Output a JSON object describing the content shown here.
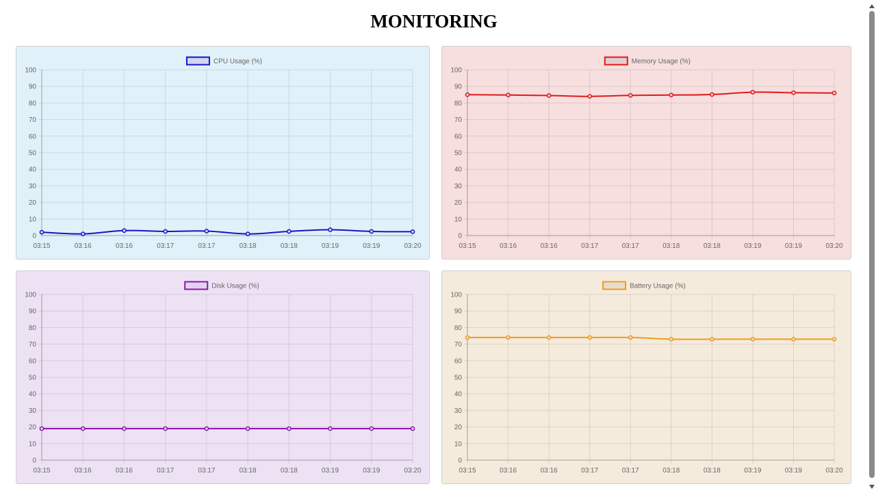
{
  "page": {
    "title": "MONITORING"
  },
  "chart_data": [
    {
      "id": "cpu",
      "type": "line",
      "title": "",
      "categories": [
        "03:15",
        "03:16",
        "03:16",
        "03:17",
        "03:17",
        "03:18",
        "03:18",
        "03:19",
        "03:19",
        "03:20"
      ],
      "series": [
        {
          "name": "CPU Usage (%)",
          "values": [
            2,
            1,
            3,
            2.5,
            2.7,
            1,
            2.5,
            3.5,
            2.5,
            2.3
          ]
        }
      ],
      "ylim": [
        0,
        100
      ],
      "yticks": [
        0,
        10,
        20,
        30,
        40,
        50,
        60,
        70,
        80,
        90,
        100
      ],
      "grid": true,
      "legend_position": "top-center",
      "colors": {
        "line": "#1a12c8",
        "legend_fill": "#d2d4ef",
        "background": "#e1f1f9"
      }
    },
    {
      "id": "mem",
      "type": "line",
      "title": "",
      "categories": [
        "03:15",
        "03:16",
        "03:16",
        "03:17",
        "03:17",
        "03:18",
        "03:18",
        "03:19",
        "03:19",
        "03:20"
      ],
      "series": [
        {
          "name": "Memory Usage (%)",
          "values": [
            85,
            84.8,
            84.5,
            84,
            84.6,
            84.8,
            85.1,
            86.5,
            86.2,
            86
          ]
        }
      ],
      "ylim": [
        0,
        100
      ],
      "yticks": [
        0,
        10,
        20,
        30,
        40,
        50,
        60,
        70,
        80,
        90,
        100
      ],
      "grid": true,
      "legend_position": "top-center",
      "colors": {
        "line": "#e0191b",
        "legend_fill": "#e3cfcf",
        "background": "#f6dfde"
      }
    },
    {
      "id": "disk",
      "type": "line",
      "title": "",
      "categories": [
        "03:15",
        "03:16",
        "03:16",
        "03:17",
        "03:17",
        "03:18",
        "03:18",
        "03:19",
        "03:19",
        "03:20"
      ],
      "series": [
        {
          "name": "Disk Usage (%)",
          "values": [
            19,
            19,
            19,
            19,
            19,
            19,
            19,
            19,
            19,
            19
          ]
        }
      ],
      "ylim": [
        0,
        100
      ],
      "yticks": [
        0,
        10,
        20,
        30,
        40,
        50,
        60,
        70,
        80,
        90,
        100
      ],
      "grid": true,
      "legend_position": "top-center",
      "colors": {
        "line": "#8f14b5",
        "legend_fill": "#e2d4ed",
        "background": "#ede2f4"
      }
    },
    {
      "id": "bat",
      "type": "line",
      "title": "",
      "categories": [
        "03:15",
        "03:16",
        "03:16",
        "03:17",
        "03:17",
        "03:18",
        "03:18",
        "03:19",
        "03:19",
        "03:20"
      ],
      "series": [
        {
          "name": "Battery Usage (%)",
          "values": [
            74,
            74,
            74,
            74,
            74,
            73,
            73,
            73,
            73,
            73
          ]
        }
      ],
      "ylim": [
        0,
        100
      ],
      "yticks": [
        0,
        10,
        20,
        30,
        40,
        50,
        60,
        70,
        80,
        90,
        100
      ],
      "grid": true,
      "legend_position": "top-center",
      "colors": {
        "line": "#f39a1b",
        "legend_fill": "#e6ddd1",
        "background": "#f5ebdd"
      }
    }
  ]
}
